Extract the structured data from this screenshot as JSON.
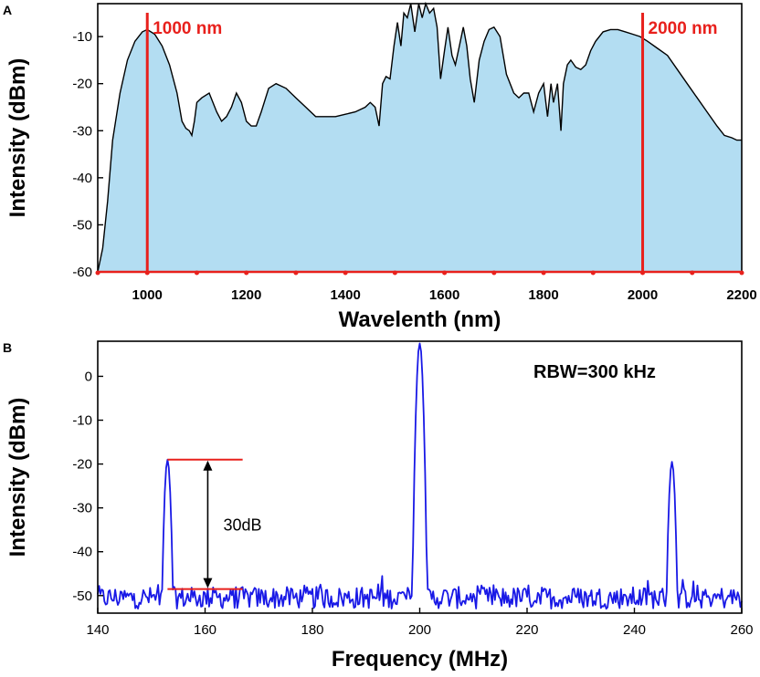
{
  "chart_data": [
    {
      "panel": "A",
      "type": "area",
      "xlabel": "Wavelenth (nm)",
      "ylabel": "Intensity (dBm)",
      "xlim": [
        900,
        2200
      ],
      "ylim": [
        -60,
        -3
      ],
      "xticks": [
        1000,
        1200,
        1400,
        1600,
        1800,
        2000,
        2200
      ],
      "yticks": [
        -60,
        -50,
        -40,
        -30,
        -20,
        -10
      ],
      "fill_color": "#b3ddf2",
      "line_color": "#000000",
      "marker_color": "#e8201c",
      "markers": [
        {
          "x": 1000,
          "label": "1000 nm"
        },
        {
          "x": 2000,
          "label": "2000 nm"
        }
      ],
      "x": [
        900,
        910,
        920,
        930,
        945,
        960,
        975,
        990,
        1000,
        1015,
        1030,
        1045,
        1060,
        1070,
        1078,
        1085,
        1090,
        1095,
        1100,
        1110,
        1125,
        1140,
        1150,
        1160,
        1170,
        1180,
        1190,
        1200,
        1210,
        1220,
        1230,
        1245,
        1260,
        1280,
        1300,
        1320,
        1340,
        1360,
        1380,
        1400,
        1420,
        1440,
        1450,
        1460,
        1468,
        1475,
        1482,
        1490,
        1498,
        1505,
        1512,
        1518,
        1525,
        1532,
        1540,
        1548,
        1555,
        1562,
        1570,
        1578,
        1585,
        1592,
        1600,
        1607,
        1615,
        1622,
        1630,
        1638,
        1645,
        1652,
        1660,
        1670,
        1680,
        1690,
        1700,
        1712,
        1725,
        1740,
        1750,
        1760,
        1770,
        1780,
        1790,
        1800,
        1808,
        1815,
        1820,
        1828,
        1835,
        1840,
        1848,
        1855,
        1865,
        1875,
        1885,
        1895,
        1905,
        1920,
        1935,
        1950,
        1965,
        1980,
        1995,
        2010,
        2030,
        2050,
        2070,
        2090,
        2110,
        2130,
        2150,
        2165,
        2180,
        2190,
        2200
      ],
      "y": [
        -60,
        -55,
        -45,
        -32,
        -22,
        -15,
        -11,
        -9,
        -8.5,
        -9.5,
        -12,
        -16,
        -22,
        -28,
        -29.5,
        -30,
        -31,
        -28,
        -24,
        -23,
        -22,
        -26,
        -28,
        -27,
        -25,
        -22,
        -24,
        -28,
        -29,
        -29,
        -26,
        -21,
        -20,
        -21,
        -23,
        -25,
        -27,
        -27,
        -27,
        -26.5,
        -26,
        -25,
        -24,
        -25,
        -29,
        -20,
        -18.5,
        -19,
        -12,
        -7,
        -12,
        -5,
        -6,
        -3,
        -9,
        -3,
        -6,
        -3,
        -5,
        -4,
        -8,
        -19,
        -13,
        -8,
        -14,
        -16,
        -12,
        -8,
        -12,
        -19,
        -24,
        -15,
        -11,
        -8.5,
        -8,
        -10,
        -18,
        -22,
        -23,
        -22,
        -22,
        -26,
        -22,
        -20,
        -27,
        -20,
        -24,
        -20,
        -30,
        -20,
        -16,
        -15,
        -16.5,
        -17,
        -16,
        -13,
        -11,
        -9,
        -8.5,
        -8.5,
        -9,
        -9.5,
        -10,
        -11,
        -12.5,
        -14,
        -17,
        -20,
        -23,
        -26,
        -29,
        -31,
        -31.5,
        -32,
        -32
      ]
    },
    {
      "panel": "B",
      "type": "line",
      "xlabel": "Frequency (MHz)",
      "ylabel": "Intensity (dBm)",
      "xlim": [
        140,
        260
      ],
      "ylim": [
        -54,
        8
      ],
      "xticks": [
        140,
        160,
        180,
        200,
        220,
        240,
        260
      ],
      "yticks": [
        -50,
        -40,
        -30,
        -20,
        -10,
        0
      ],
      "line_color": "#1919e6",
      "annotation": "RBW=300 kHz",
      "bracket": {
        "x_start": 153,
        "x_end": 167,
        "x_arrow": 160.5,
        "y_top": -19,
        "y_bottom": -48.5,
        "label": "30dB",
        "color": "#e8201c"
      },
      "peaks": [
        {
          "x": 153,
          "y": -19
        },
        {
          "x": 200,
          "y": 7.5
        },
        {
          "x": 247,
          "y": -19.5
        }
      ],
      "noise_floor": -50.5
    }
  ],
  "panel_a": {
    "label": "A"
  },
  "panel_b": {
    "label": "B"
  }
}
